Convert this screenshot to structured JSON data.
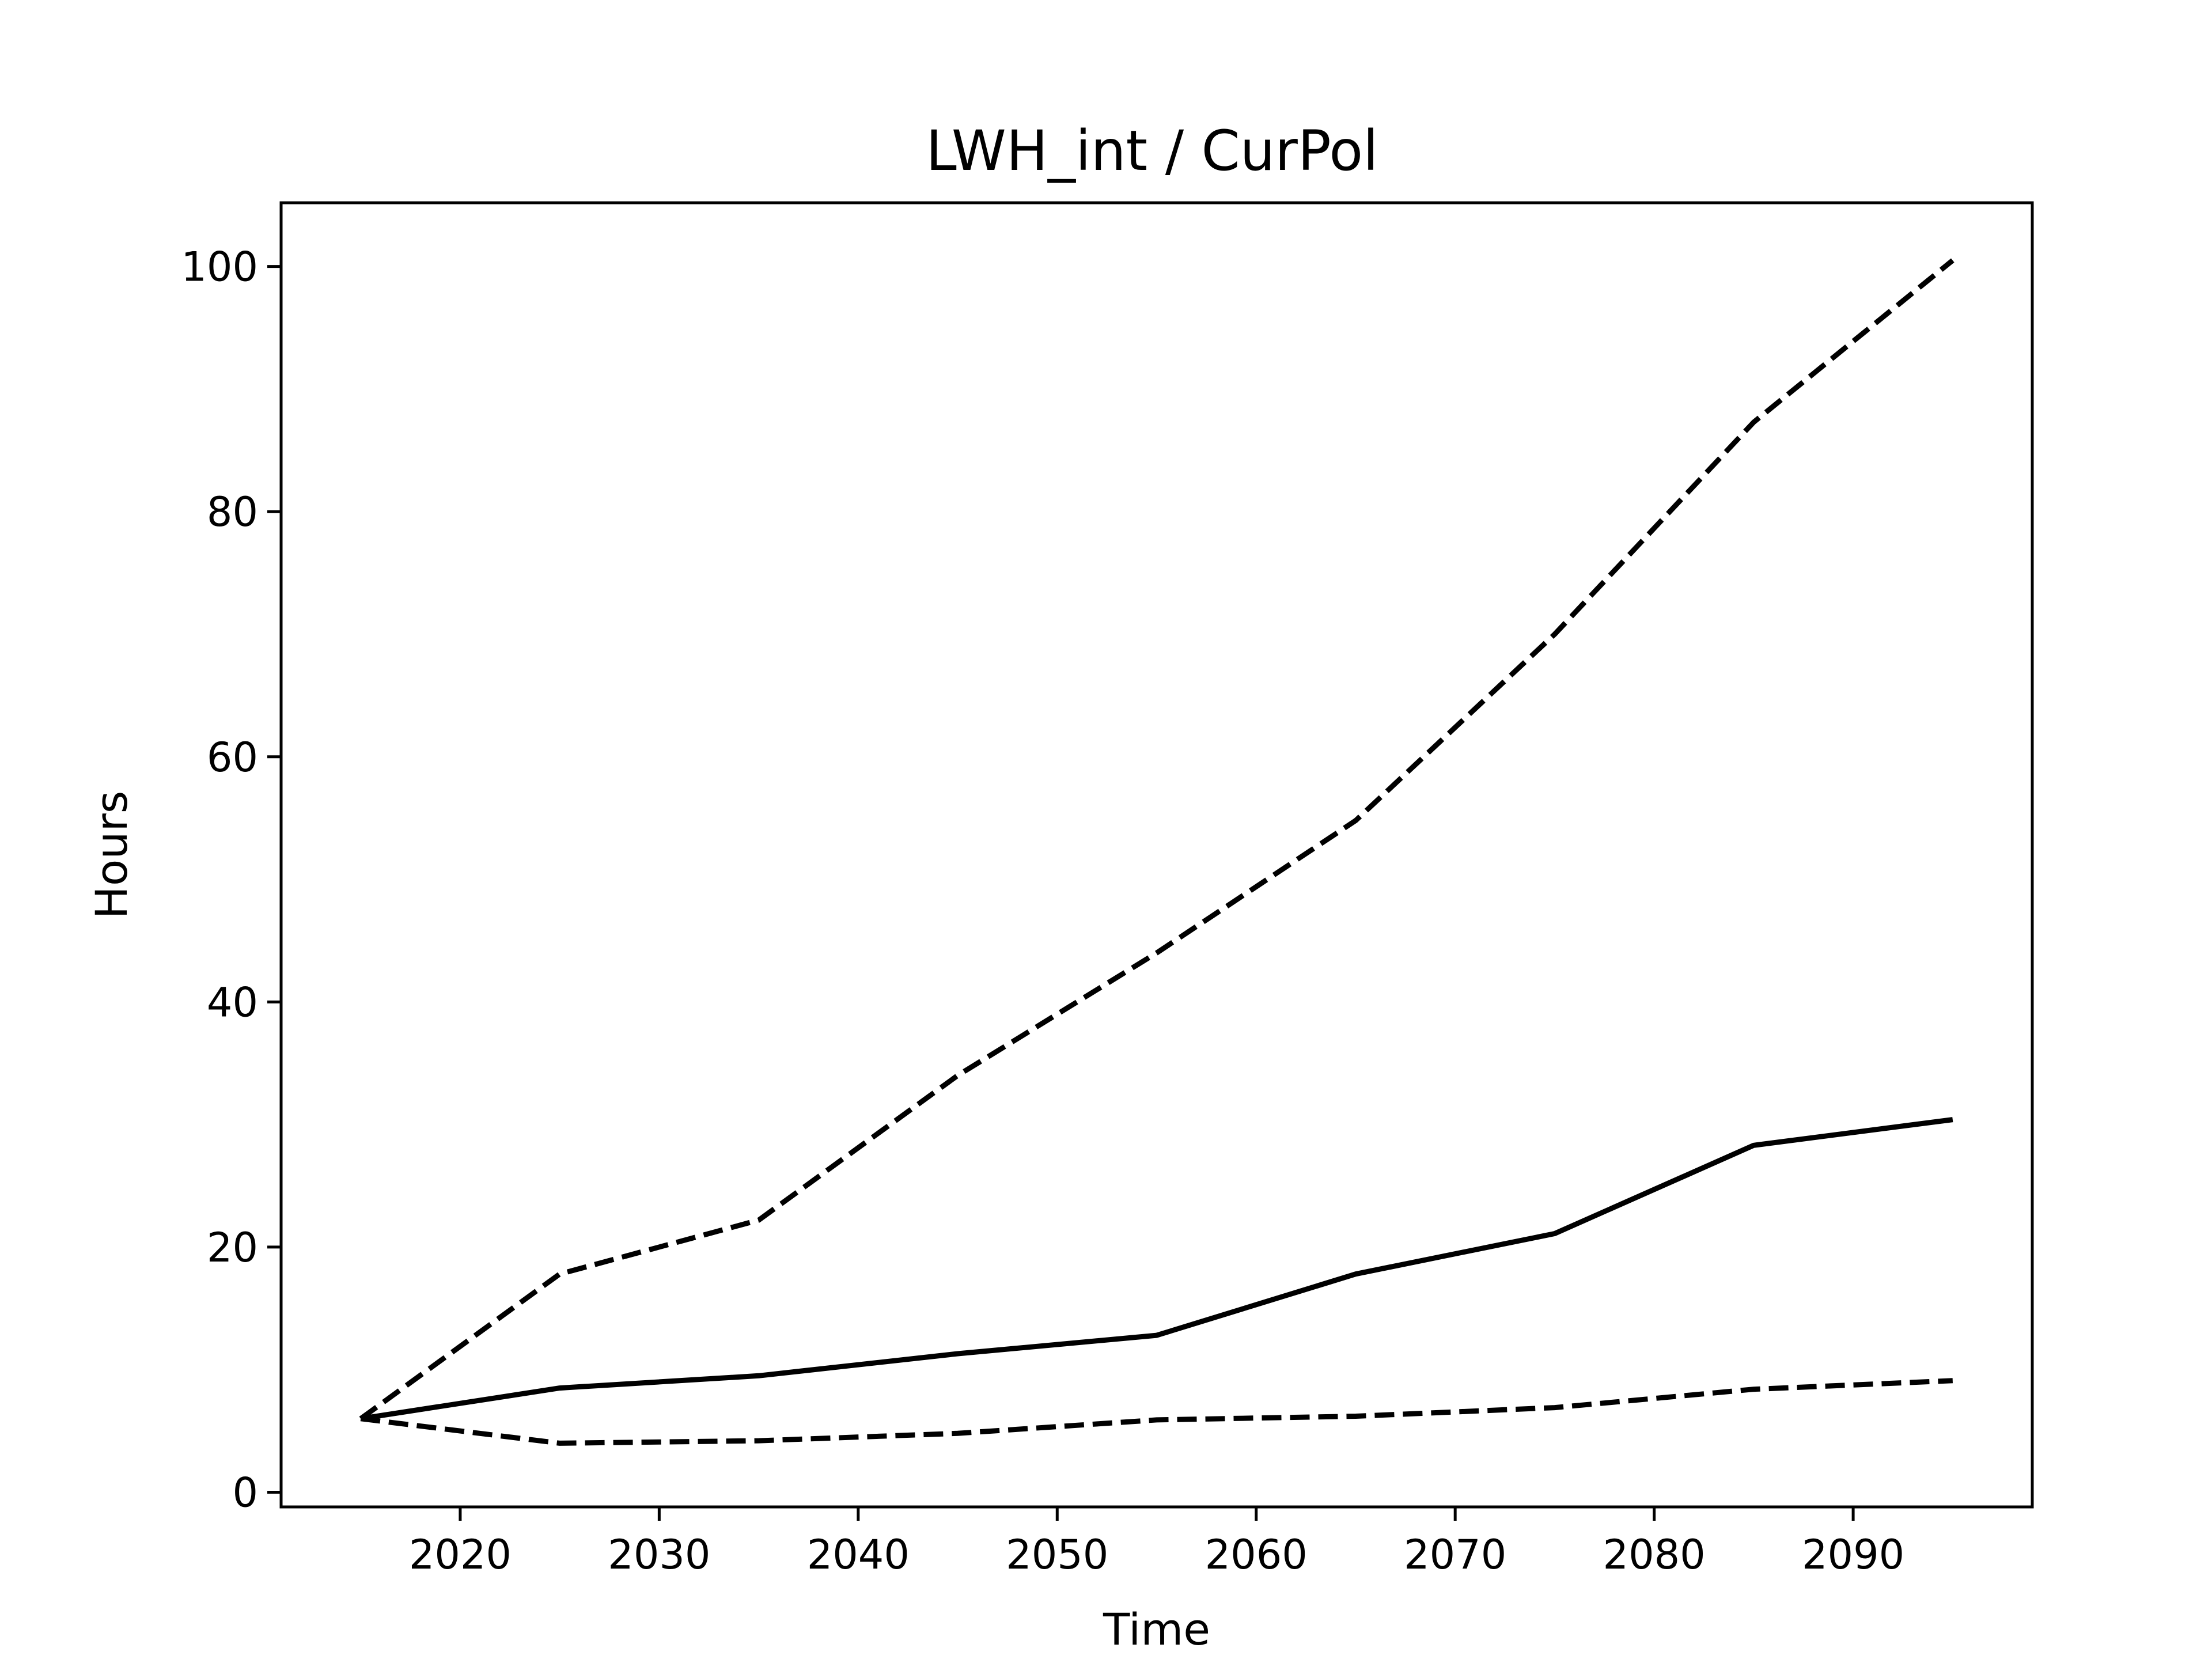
{
  "chart_data": {
    "type": "line",
    "title": "LWH_int / CurPol",
    "xlabel": "Time",
    "ylabel": "Hours",
    "xlim": [
      2011,
      2099
    ],
    "ylim": [
      -1.2,
      105.2
    ],
    "xticks": [
      2020,
      2030,
      2040,
      2050,
      2060,
      2070,
      2080,
      2090
    ],
    "yticks": [
      0,
      20,
      40,
      60,
      80,
      100
    ],
    "grid": false,
    "legend": "none",
    "x": [
      2015,
      2025,
      2035,
      2045,
      2055,
      2065,
      2075,
      2085,
      2095
    ],
    "series": [
      {
        "style": "dashed",
        "color": "#000000",
        "values": [
          6.0,
          17.8,
          22.2,
          34.0,
          44.0,
          54.8,
          70.0,
          87.3,
          100.5
        ]
      },
      {
        "style": "solid",
        "color": "#000000",
        "values": [
          6.0,
          8.5,
          9.5,
          11.3,
          12.8,
          17.8,
          21.1,
          28.3,
          30.4
        ]
      },
      {
        "style": "dashed",
        "color": "#000000",
        "values": [
          6.0,
          4.0,
          4.2,
          4.8,
          5.9,
          6.2,
          6.9,
          8.4,
          9.1
        ]
      }
    ]
  }
}
